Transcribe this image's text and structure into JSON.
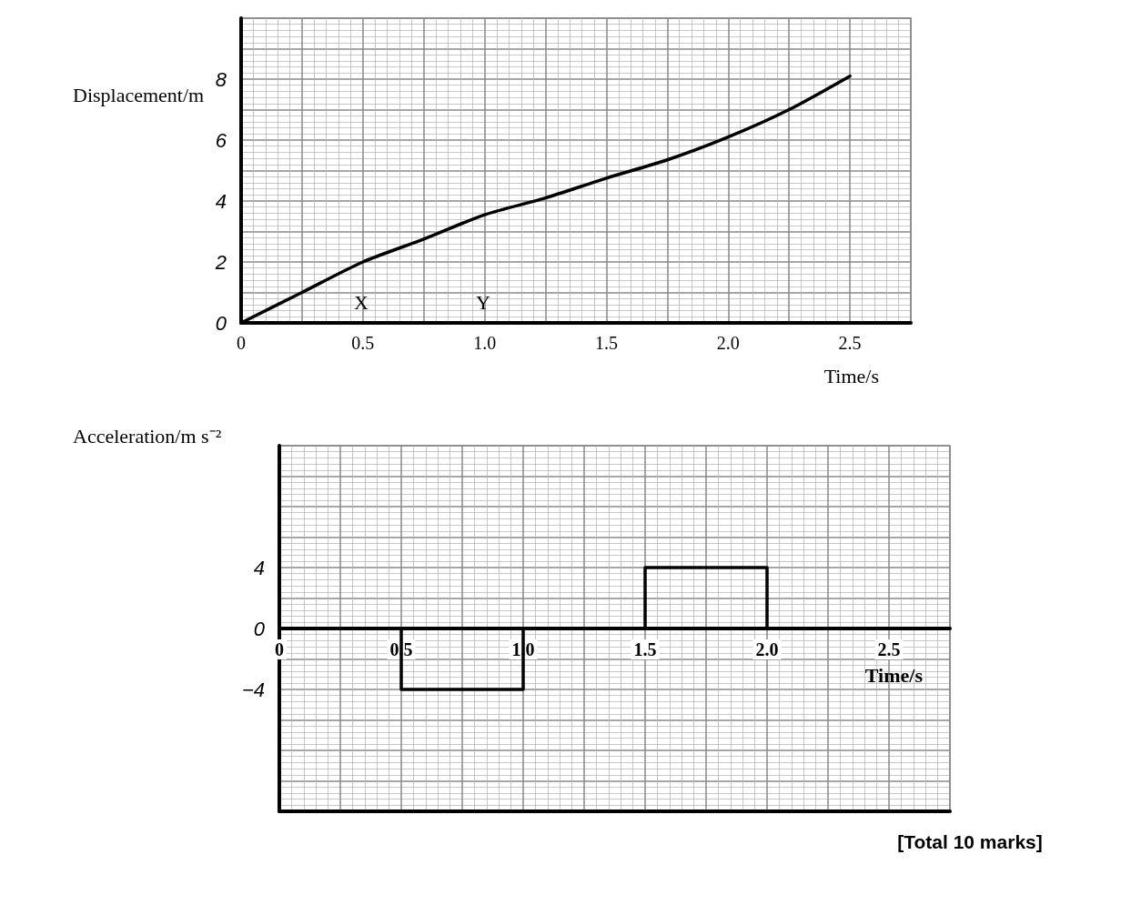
{
  "chart_data": [
    {
      "type": "line",
      "xlabel": "Time/s",
      "ylabel": "Displacement/m",
      "x": [
        0,
        0.25,
        0.5,
        0.75,
        1.0,
        1.25,
        1.5,
        1.75,
        2.0,
        2.25,
        2.5
      ],
      "values": [
        0,
        1.0,
        2.0,
        2.75,
        3.55,
        4.1,
        4.75,
        5.35,
        6.1,
        7.0,
        8.1
      ],
      "color": "#000000",
      "marker": "none",
      "line_style": "solid",
      "grid": true,
      "xlim": [
        0,
        2.75
      ],
      "xticks": [
        0,
        {
          "value": 0.25,
          "label": null
        },
        0.5,
        {
          "value": 0.75,
          "label": null
        },
        {
          "value": 1,
          "label": "1.0"
        },
        {
          "value": 1.25,
          "label": null
        },
        1.5,
        {
          "value": 1.75,
          "label": null
        },
        {
          "value": 2,
          "label": "2.0"
        },
        {
          "value": 2.25,
          "label": null
        },
        2.5,
        {
          "value": 2.75,
          "label": null
        }
      ],
      "ylim": [
        0,
        10
      ],
      "yticks": [
        0,
        {
          "value": 1,
          "label": null
        },
        2,
        {
          "value": 3,
          "label": null
        },
        4,
        {
          "value": 5,
          "label": null
        },
        6,
        {
          "value": 7,
          "label": null
        },
        8,
        {
          "value": 9,
          "label": null
        },
        {
          "value": 10,
          "label": null
        }
      ],
      "annotations": [
        "X",
        "Y"
      ]
    },
    {
      "type": "step",
      "xlabel": "Time/s",
      "ylabel": "Acceleration/m s⁻²",
      "x": [
        0,
        0.5,
        1.0,
        1.5,
        2.0
      ],
      "values": [
        0,
        -4,
        0,
        4,
        0
      ],
      "color": "#000000",
      "marker": "none",
      "line_style": "solid",
      "grid": true,
      "xlim": [
        0,
        2.75
      ],
      "xticks": [
        0,
        {
          "value": 0.25,
          "label": null
        },
        0.5,
        {
          "value": 0.75,
          "label": null
        },
        {
          "value": 1,
          "label": "1.0"
        },
        {
          "value": 1.25,
          "label": null
        },
        1.5,
        {
          "value": 1.75,
          "label": null
        },
        {
          "value": 2,
          "label": "2.0"
        },
        {
          "value": 2.25,
          "label": null
        },
        2.5,
        {
          "value": 2.75,
          "label": null
        }
      ],
      "ylim": [
        -12,
        12
      ],
      "yticks": [
        {
          "value": -12,
          "label": null
        },
        {
          "value": -10,
          "label": null
        },
        {
          "value": -8,
          "label": null
        },
        {
          "value": -6,
          "label": null
        },
        {
          "value": -4,
          "label": "−4"
        },
        {
          "value": -2,
          "label": null
        },
        0,
        {
          "value": 2,
          "label": null
        },
        4,
        {
          "value": 6,
          "label": null
        },
        {
          "value": 8,
          "label": null
        },
        {
          "value": 10,
          "label": null
        },
        {
          "value": 12,
          "label": null
        }
      ],
      "annotations": [
        "[Total 10 marks]"
      ]
    }
  ]
}
